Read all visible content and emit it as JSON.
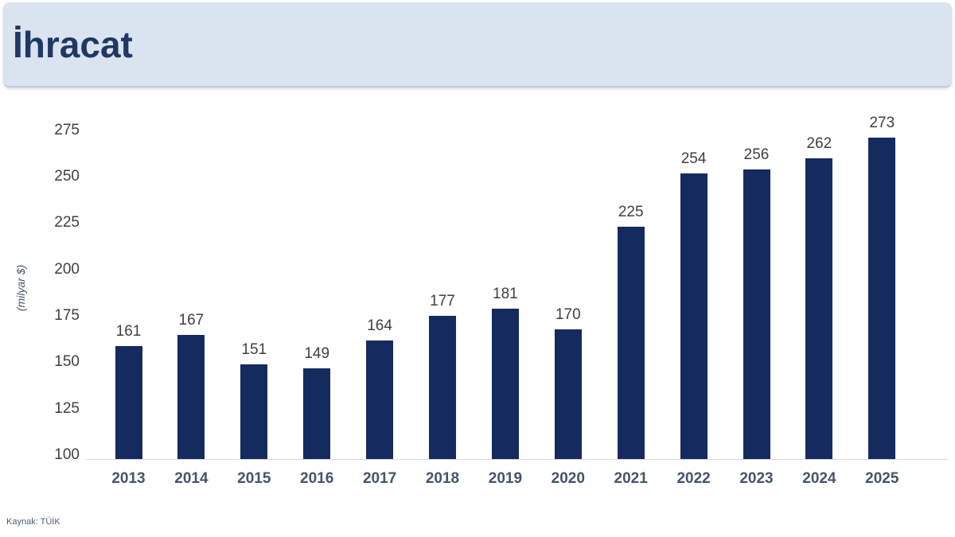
{
  "header": {
    "title": "İhracat"
  },
  "source": {
    "label": "Kaynak: TÜİK"
  },
  "colors": {
    "header_bg": "#dae3f0",
    "title": "#1f3864",
    "bar": "#152a5f",
    "axis_line": "#d9d9d9",
    "tick_text": "#404040",
    "year_text": "#44546a",
    "value_text": "#3f3f3f"
  },
  "chart_data": {
    "type": "bar",
    "title": "İhracat",
    "categories": [
      "2013",
      "2014",
      "2015",
      "2016",
      "2017",
      "2018",
      "2019",
      "2020",
      "2021",
      "2022",
      "2023",
      "2024",
      "2025"
    ],
    "values": [
      161,
      167,
      151,
      149,
      164,
      177,
      181,
      170,
      225,
      254,
      256,
      262,
      273
    ],
    "xlabel": "",
    "ylabel": "(milyar $)",
    "ylim": [
      100,
      275
    ],
    "ytick_step": 25,
    "yticks": [
      100,
      125,
      150,
      175,
      200,
      225,
      250,
      275
    ],
    "grid": false,
    "value_labels": true,
    "legend": "none"
  }
}
